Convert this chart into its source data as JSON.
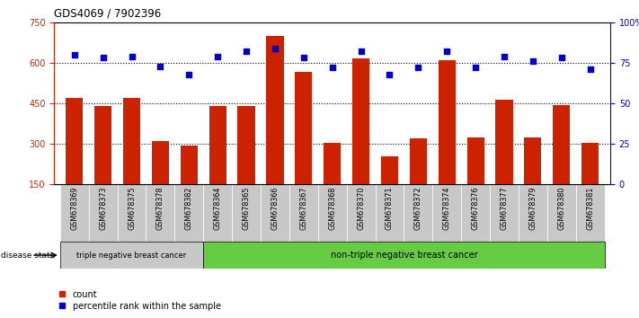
{
  "title": "GDS4069 / 7902396",
  "samples": [
    "GSM678369",
    "GSM678373",
    "GSM678375",
    "GSM678378",
    "GSM678382",
    "GSM678364",
    "GSM678365",
    "GSM678366",
    "GSM678367",
    "GSM678368",
    "GSM678370",
    "GSM678371",
    "GSM678372",
    "GSM678374",
    "GSM678376",
    "GSM678377",
    "GSM678379",
    "GSM678380",
    "GSM678381"
  ],
  "counts": [
    470,
    440,
    470,
    310,
    295,
    440,
    440,
    700,
    565,
    305,
    615,
    255,
    320,
    610,
    325,
    465,
    325,
    445,
    305
  ],
  "percentiles": [
    80,
    78,
    79,
    73,
    68,
    79,
    82,
    84,
    78,
    72,
    82,
    68,
    72,
    82,
    72,
    79,
    76,
    78,
    71
  ],
  "ylim_left": [
    150,
    750
  ],
  "ylim_right": [
    0,
    100
  ],
  "yticks_left": [
    150,
    300,
    450,
    600,
    750
  ],
  "yticks_right": [
    0,
    25,
    50,
    75,
    100
  ],
  "ytick_labels_right": [
    "0",
    "25",
    "50",
    "75",
    "100%"
  ],
  "hlines": [
    300,
    450,
    600
  ],
  "group1_label": "triple negative breast cancer",
  "group2_label": "non-triple negative breast cancer",
  "group1_count": 5,
  "bar_color": "#cc2200",
  "dot_color": "#0000cc",
  "legend_count_label": "count",
  "legend_pct_label": "percentile rank within the sample",
  "disease_state_label": "disease state",
  "group1_color": "#c8c8c8",
  "group2_color": "#66cc44",
  "tick_bg_color": "#c8c8c8",
  "ylabel_left_color": "#cc2200",
  "ylabel_right_color": "#0000cc",
  "bar_width": 0.6
}
